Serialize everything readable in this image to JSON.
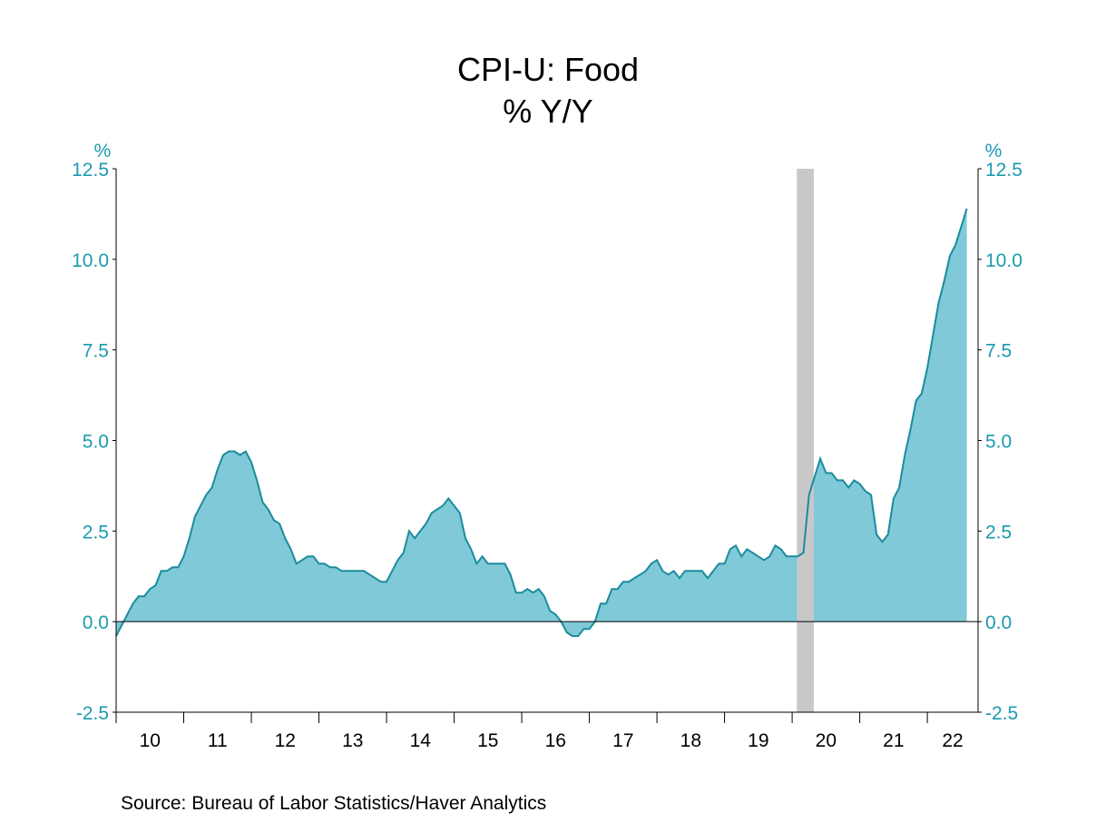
{
  "chart_data": {
    "type": "area",
    "title": "CPI-U: Food",
    "subtitle": "% Y/Y",
    "ylabel_left": "%",
    "ylabel_right": "%",
    "ylim": [
      -2.5,
      12.5
    ],
    "yticks": [
      "12.5",
      "10.0",
      "7.5",
      "5.0",
      "2.5",
      "0.0",
      "-2.5"
    ],
    "ytick_values": [
      12.5,
      10,
      7.5,
      5,
      2.5,
      0,
      -2.5
    ],
    "xticks": [
      "10",
      "11",
      "12",
      "13",
      "14",
      "15",
      "16",
      "17",
      "18",
      "19",
      "20",
      "21",
      "22"
    ],
    "x_start": "2010-01",
    "x_frequency": "monthly",
    "x_end_axis": "2022-09",
    "recession_shading": {
      "start": "2020-02",
      "end": "2020-04",
      "color": "#c8c8c8"
    },
    "series": [
      {
        "values": [
          -0.4,
          -0.1,
          0.2,
          0.5,
          0.7,
          0.7,
          0.9,
          1.0,
          1.4,
          1.4,
          1.5,
          1.5,
          1.8,
          2.3,
          2.9,
          3.2,
          3.5,
          3.7,
          4.2,
          4.6,
          4.7,
          4.7,
          4.6,
          4.7,
          4.4,
          3.9,
          3.3,
          3.1,
          2.8,
          2.7,
          2.3,
          2.0,
          1.6,
          1.7,
          1.8,
          1.8,
          1.6,
          1.6,
          1.5,
          1.5,
          1.4,
          1.4,
          1.4,
          1.4,
          1.4,
          1.3,
          1.2,
          1.1,
          1.1,
          1.4,
          1.7,
          1.9,
          2.5,
          2.3,
          2.5,
          2.7,
          3.0,
          3.1,
          3.2,
          3.4,
          3.2,
          3.0,
          2.3,
          2.0,
          1.6,
          1.8,
          1.6,
          1.6,
          1.6,
          1.6,
          1.3,
          0.8,
          0.8,
          0.9,
          0.8,
          0.9,
          0.7,
          0.3,
          0.2,
          0.0,
          -0.3,
          -0.4,
          -0.4,
          -0.2,
          -0.2,
          0.0,
          0.5,
          0.5,
          0.9,
          0.9,
          1.1,
          1.1,
          1.2,
          1.3,
          1.4,
          1.6,
          1.7,
          1.4,
          1.3,
          1.4,
          1.2,
          1.4,
          1.4,
          1.4,
          1.4,
          1.2,
          1.4,
          1.6,
          1.6,
          2.0,
          2.1,
          1.8,
          2.0,
          1.9,
          1.8,
          1.7,
          1.8,
          2.1,
          2.0,
          1.8,
          1.8,
          1.8,
          1.9,
          3.5,
          4.0,
          4.5,
          4.1,
          4.1,
          3.9,
          3.9,
          3.7,
          3.9,
          3.8,
          3.6,
          3.5,
          2.4,
          2.2,
          2.4,
          3.4,
          3.7,
          4.6,
          5.3,
          6.1,
          6.3,
          7.0,
          7.9,
          8.8,
          9.4,
          10.1,
          10.4,
          10.9,
          11.4
        ],
        "fill_color": "#80c9d9",
        "line_color": "#1a8c9c"
      }
    ],
    "axis_text_color": "#1a9bb0",
    "grid": false,
    "legend": "none"
  },
  "source": "Source:  Bureau of Labor Statistics/Haver Analytics"
}
